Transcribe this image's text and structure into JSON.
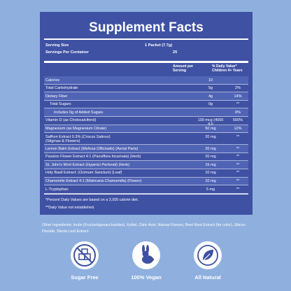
{
  "header": {
    "title": "Supplement Facts"
  },
  "serving": [
    [
      "Serving Size",
      "1 Packet (7.7g)"
    ],
    [
      "Servings Per Container",
      "25"
    ]
  ],
  "columns": {
    "amount": "Amount per Serving",
    "dv": "% Daily Value*\nChildren 4+ Years"
  },
  "rows": [
    {
      "name": [
        "Calories"
      ],
      "amount": "10"
    },
    {
      "name": [
        "Total Carbohydrate"
      ],
      "amount": "5g",
      "dv": "2%"
    },
    {
      "name": [
        "Dietary Fiber"
      ],
      "amount": "4g",
      "dv": "14%"
    },
    {
      "name": [
        "Total Sugars"
      ],
      "amount": "0g",
      "dv": "**"
    },
    {
      "name": [
        "Includes 0g of Added Sugars"
      ],
      "dv": "0%"
    },
    {
      "name": [
        "Vitamin D (as Cholecalciferol)"
      ],
      "amount": "100 mcg (4000 IU)",
      "dv": "500%"
    },
    {
      "name": [
        "Magnesium (as Magnesium Citrate)"
      ],
      "amount": "50 mg",
      "dv": "12%"
    },
    {
      "name": [
        "Saffron Extract 0.3% (",
        "Crocus Sativus",
        ")\n(Stigmas & Flowers)"
      ],
      "amount": "20 mg",
      "dv": "**"
    },
    {
      "name": [
        "Lemon Balm Extract (",
        "Melissa Officinalis",
        ") (Aerial Parts)"
      ],
      "amount": "20 mg",
      "dv": "**"
    },
    {
      "name": [
        "Passion Flower Extract 4:1 (",
        "Passiflora Incarnata",
        ") (Herb)"
      ],
      "amount": "20 mg",
      "dv": "**"
    },
    {
      "name": [
        "St. John's Wort Extract (",
        "Hyperici Perforati",
        ") (Herb)"
      ],
      "amount": "15 mg",
      "dv": "**"
    },
    {
      "name": [
        "Holy Basil Extract: (",
        "Ocimum Sanctum",
        ") (Leaf)"
      ],
      "amount": "10 mg",
      "dv": "**"
    },
    {
      "name": [
        "Chamomile Extract 4:1 (",
        "Matricaria Chamomilla",
        ") (Flower)"
      ],
      "amount": "10 mg",
      "dv": "**"
    },
    {
      "name": [
        "L-Tryptophan"
      ],
      "amount": "5 mg",
      "dv": "**"
    }
  ],
  "footnotes": [
    "*Percent Daily Values are based on a 2,000 calorie diet.",
    "**Daily Value not established."
  ],
  "other_ingredients": "Other Ingredients: Inulin (Fructooligosaccharides), Xylitol, Citric Acid, Natural Flavors, Beet Root Extract (for color), Silicon Dioxide, Stevia Leaf Extract.",
  "badges": [
    "Sugar Free",
    "100% Vegan",
    "All Natural"
  ]
}
